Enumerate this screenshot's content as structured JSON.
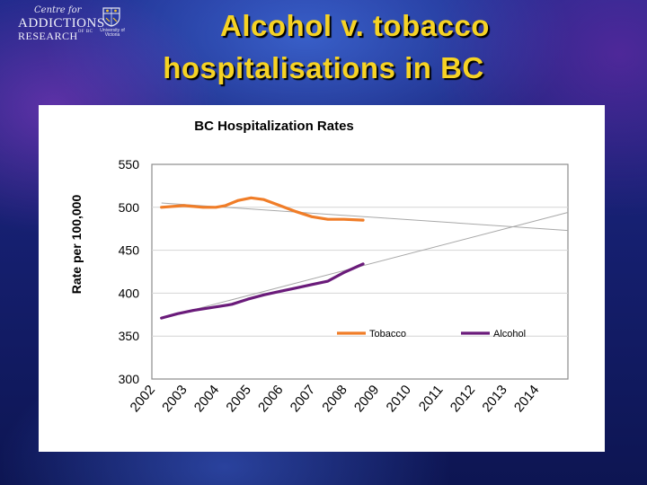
{
  "logo": {
    "script_text": "Centre for",
    "line1": "ADDICTIONS",
    "line2": "RESEARCH",
    "line2_suffix": "OF BC",
    "crest_text": "University of Victoria",
    "colors": {
      "text": "#f2f2fa"
    }
  },
  "slide": {
    "title_line1": "Alcohol v. tobacco",
    "title_line2": "hospitalisations in BC",
    "title_color": "#f6d324"
  },
  "chart_data": {
    "type": "line",
    "title": "BC Hospitalization Rates",
    "xlabel": "",
    "ylabel": "Rate per 100,000",
    "ylim": [
      300,
      550
    ],
    "yticks": [
      300,
      350,
      400,
      450,
      500,
      550
    ],
    "x_categories": [
      "2002",
      "2003",
      "2004",
      "2005",
      "2006",
      "2007",
      "2008",
      "2009",
      "2010",
      "2011",
      "2012",
      "2013",
      "2014"
    ],
    "xlim": [
      2002,
      2015
    ],
    "grid": true,
    "legend_position": "inside-bottom-right",
    "series": [
      {
        "name": "Tobacco",
        "color": "#f07d28",
        "x": [
          2002.3,
          2003.0,
          2003.6,
          2004.0,
          2004.3,
          2004.7,
          2005.1,
          2005.5,
          2006.0,
          2006.5,
          2007.0,
          2007.5,
          2008.0,
          2008.6
        ],
        "y": [
          500,
          502,
          500,
          500,
          502,
          508,
          511,
          509,
          502,
          495,
          489,
          486,
          486,
          485
        ]
      },
      {
        "name": "Alcohol",
        "color": "#6a1b7a",
        "x": [
          2002.3,
          2002.8,
          2003.3,
          2004.0,
          2004.5,
          2005.0,
          2005.5,
          2006.0,
          2006.5,
          2007.0,
          2007.5,
          2008.0,
          2008.6
        ],
        "y": [
          371,
          376,
          380,
          384,
          387,
          393,
          398,
          402,
          406,
          410,
          414,
          424,
          434
        ]
      }
    ],
    "trendlines": [
      {
        "series": "Tobacco",
        "color": "#a8a8a8",
        "x": [
          2002.3,
          2015.0
        ],
        "y": [
          505,
          473
        ]
      },
      {
        "series": "Alcohol",
        "color": "#a8a8a8",
        "x": [
          2002.3,
          2015.0
        ],
        "y": [
          371,
          494
        ]
      }
    ]
  }
}
